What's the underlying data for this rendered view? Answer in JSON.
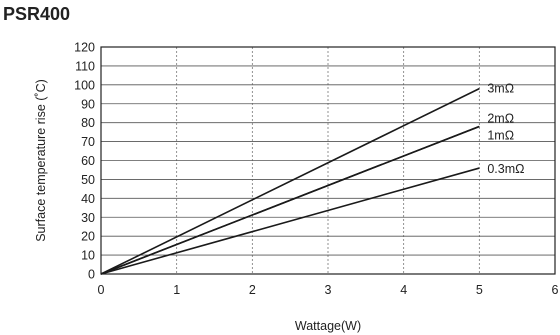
{
  "chart_data": {
    "type": "line",
    "title": "PSR400",
    "xlabel": "Wattage(W)",
    "ylabel": "Surface temperature rise (˚C)",
    "xlim": [
      0,
      6
    ],
    "ylim": [
      0,
      120
    ],
    "xticks": [
      0,
      1,
      2,
      3,
      4,
      5,
      6
    ],
    "yticks": [
      0,
      10,
      20,
      30,
      40,
      50,
      60,
      70,
      80,
      90,
      100,
      110,
      120
    ],
    "grid": {
      "x": "dotted",
      "y": "solid"
    },
    "series": [
      {
        "name": "3mΩ",
        "x": [
          0,
          5
        ],
        "values": [
          0,
          98
        ]
      },
      {
        "name": "2mΩ",
        "x": [
          0,
          5
        ],
        "values": [
          0,
          78
        ]
      },
      {
        "name": "1mΩ",
        "x": [
          0,
          5
        ],
        "values": [
          0,
          78
        ]
      },
      {
        "name": "0.3mΩ",
        "x": [
          0,
          5
        ],
        "values": [
          0,
          56
        ]
      }
    ]
  }
}
